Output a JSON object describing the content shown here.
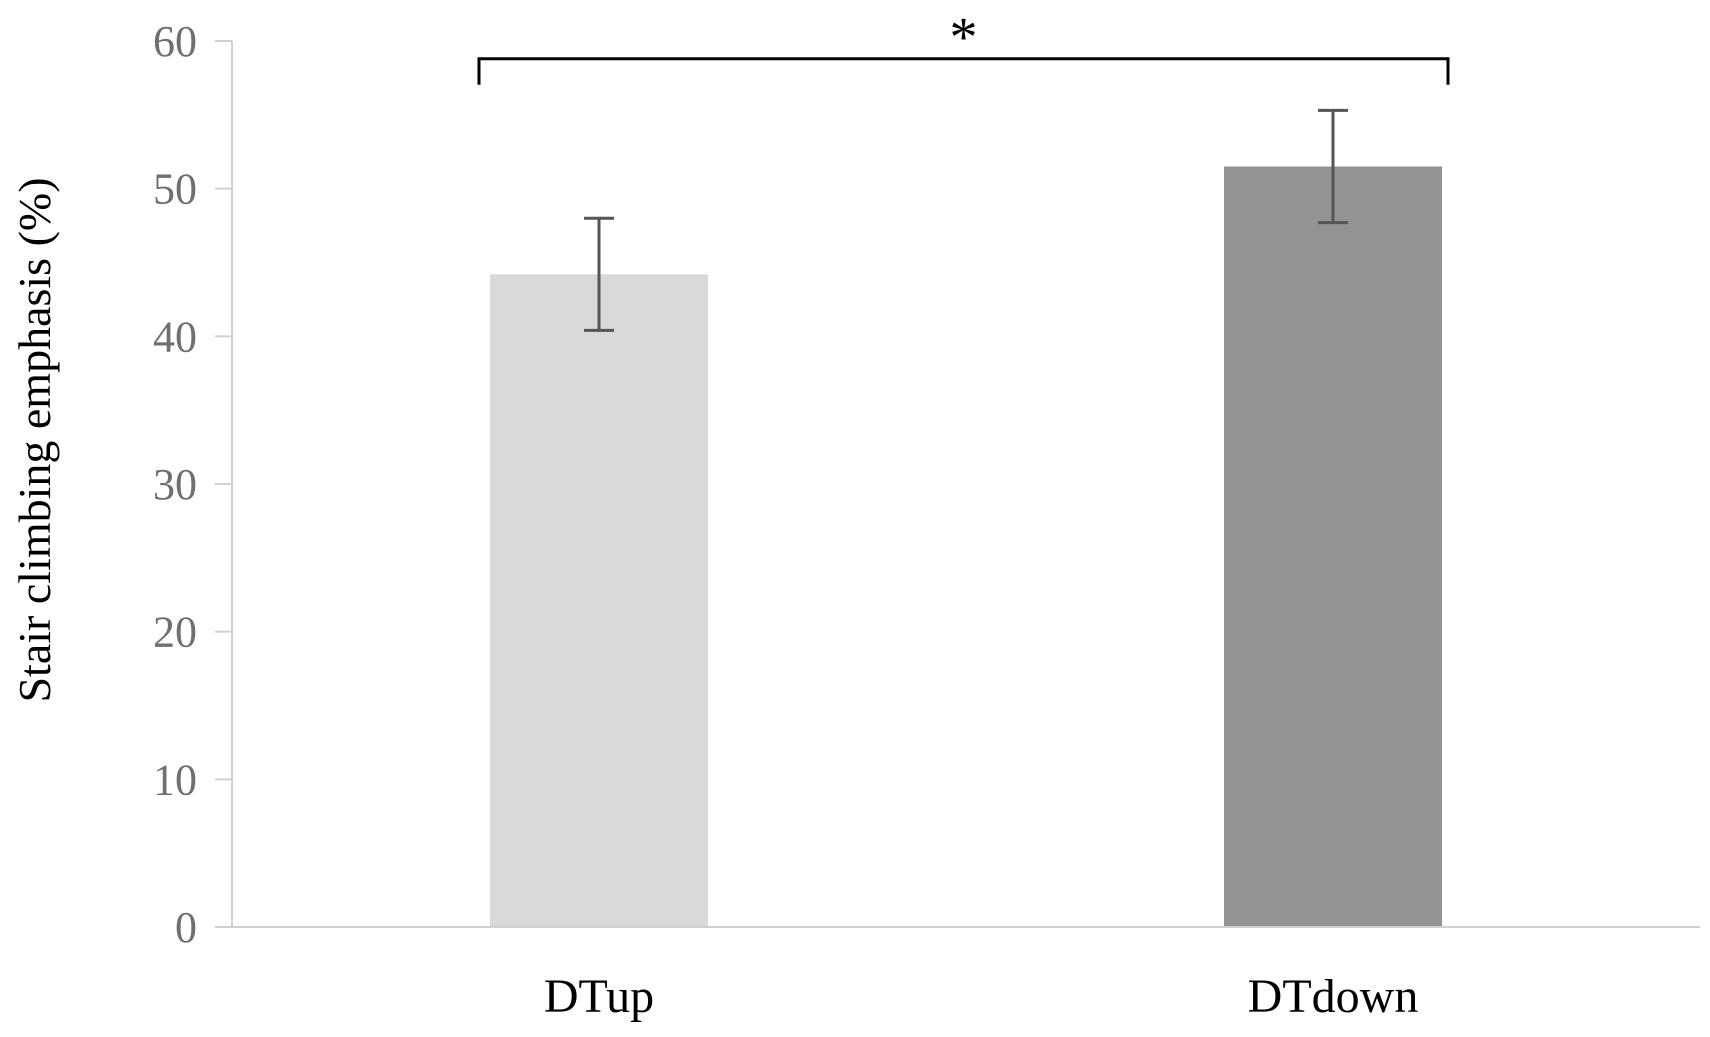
{
  "chart_data": {
    "type": "bar",
    "title": "",
    "xlabel": "",
    "ylabel": "Stair climbing emphasis (%)",
    "ylim": [
      0,
      60
    ],
    "yticks": [
      0,
      10,
      20,
      30,
      40,
      50,
      60
    ],
    "categories": [
      "DTup",
      "DTdown"
    ],
    "values": [
      44.2,
      51.5
    ],
    "errors": [
      3.8,
      3.8
    ],
    "bar_colors": [
      "#d9d9d9",
      "#939393"
    ],
    "grid": false,
    "legend": "none",
    "significance": {
      "from": "DTup",
      "to": "DTdown",
      "label": "*",
      "y": 58.8
    }
  },
  "colors": {
    "axis": "#d0d0d0",
    "tick_text": "#6f6f6f",
    "error_bar": "#555555",
    "bracket": "#000000"
  }
}
